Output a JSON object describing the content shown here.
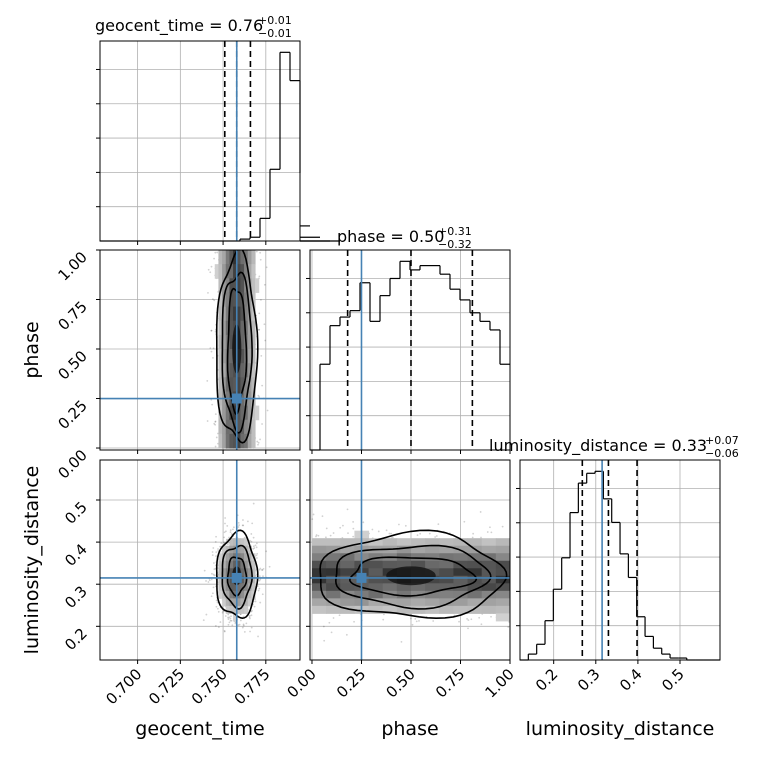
{
  "chart_data": {
    "type": "corner",
    "truth_color": "#4682b4",
    "params": [
      "geocent_time",
      "phase",
      "luminosity_distance"
    ],
    "axis_labels": [
      "geocent_time",
      "phase",
      "luminosity_distance"
    ],
    "ranges": [
      [
        0.678,
        0.795
      ],
      [
        -0.01,
        1.0
      ],
      [
        0.12,
        0.595
      ]
    ],
    "ticks": [
      [
        "0.700",
        "0.725",
        "0.750",
        "0.775"
      ],
      [
        "0.00",
        "0.25",
        "0.50",
        "0.75",
        "1.00"
      ],
      [
        "0.2",
        "0.3",
        "0.4",
        "0.5"
      ]
    ],
    "tick_values": [
      [
        0.7,
        0.725,
        0.75,
        0.775
      ],
      [
        0.0,
        0.25,
        0.5,
        0.75,
        1.0
      ],
      [
        0.2,
        0.3,
        0.4,
        0.5
      ]
    ],
    "truths": [
      0.758,
      0.25,
      0.315
    ],
    "titles": [
      {
        "label": "geocent_time = 0.76",
        "plus": "+0.01",
        "minus": "−0.01"
      },
      {
        "label": "phase = 0.50",
        "plus": "+0.31",
        "minus": "−0.32"
      },
      {
        "label": "luminosity_distance = 0.33",
        "plus": "+0.07",
        "minus": "−0.06"
      }
    ],
    "quantiles": [
      [
        0.751,
        0.758,
        0.766
      ],
      [
        0.18,
        0.5,
        0.81
      ],
      [
        0.268,
        0.33,
        0.398
      ]
    ],
    "hist1d": [
      {
        "edges_start": 0.678,
        "bin_width": 0.00585,
        "counts": [
          0,
          0,
          0,
          0,
          0,
          0,
          0,
          0,
          0,
          0,
          0,
          0,
          0,
          0,
          1,
          2,
          12,
          38,
          100,
          85,
          36,
          8,
          2,
          0,
          0
        ]
      },
      {
        "edges_start": -0.01,
        "bin_width": 0.0505,
        "counts": [
          0,
          40,
          58,
          62,
          65,
          78,
          60,
          72,
          80,
          88,
          84,
          86,
          86,
          82,
          75,
          70,
          64,
          60,
          56,
          40,
          40
        ]
      },
      {
        "edges_start": 0.12,
        "bin_width": 0.0198,
        "counts": [
          0,
          3,
          8,
          20,
          36,
          52,
          75,
          90,
          95,
          96,
          82,
          70,
          54,
          42,
          22,
          12,
          6,
          3,
          1,
          1,
          0,
          0,
          0,
          0
        ]
      }
    ],
    "density2d": [
      {
        "x_param": "geocent_time",
        "y_param": "phase",
        "x_center": 0.758,
        "x_sd": 0.006,
        "y_center": 0.5,
        "y_sd": 0.36,
        "y_min": 0.0,
        "y_max": 1.0
      },
      {
        "x_param": "geocent_time",
        "y_param": "luminosity_distance",
        "x_center": 0.758,
        "x_sd": 0.006,
        "y_center": 0.32,
        "y_sd": 0.05
      },
      {
        "x_param": "phase",
        "y_param": "luminosity_distance",
        "x_center": 0.5,
        "x_sd": 0.36,
        "x_min": 0.0,
        "x_max": 1.0,
        "y_center": 0.32,
        "y_sd": 0.05
      }
    ]
  }
}
